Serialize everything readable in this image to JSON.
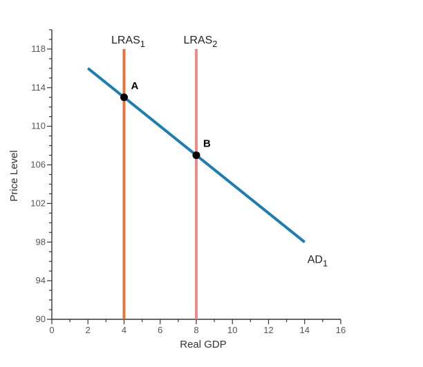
{
  "chart_data": {
    "type": "line",
    "xlabel": "Real GDP",
    "ylabel": "Price Level",
    "xlim": [
      0,
      16
    ],
    "ylim": [
      90,
      120
    ],
    "xticks": [
      0,
      2,
      4,
      6,
      8,
      10,
      12,
      14,
      16
    ],
    "yticks": [
      90,
      94,
      98,
      102,
      106,
      110,
      114,
      118
    ],
    "grid": false,
    "series": [
      {
        "key": "ad1",
        "label_main": "AD",
        "label_sub": "1",
        "color": "#1a7db5",
        "points": [
          [
            2,
            116
          ],
          [
            14,
            98
          ]
        ]
      },
      {
        "key": "lras1",
        "label_main": "LRAS",
        "label_sub": "1",
        "color": "#e8733a",
        "points": [
          [
            4,
            90
          ],
          [
            4,
            118
          ]
        ]
      },
      {
        "key": "lras2",
        "label_main": "LRAS",
        "label_sub": "2",
        "color": "#ee8a8a",
        "points": [
          [
            8,
            90
          ],
          [
            8,
            118
          ]
        ]
      }
    ],
    "points": [
      {
        "label": "A",
        "x": 4,
        "y": 113
      },
      {
        "label": "B",
        "x": 8,
        "y": 107
      }
    ]
  }
}
